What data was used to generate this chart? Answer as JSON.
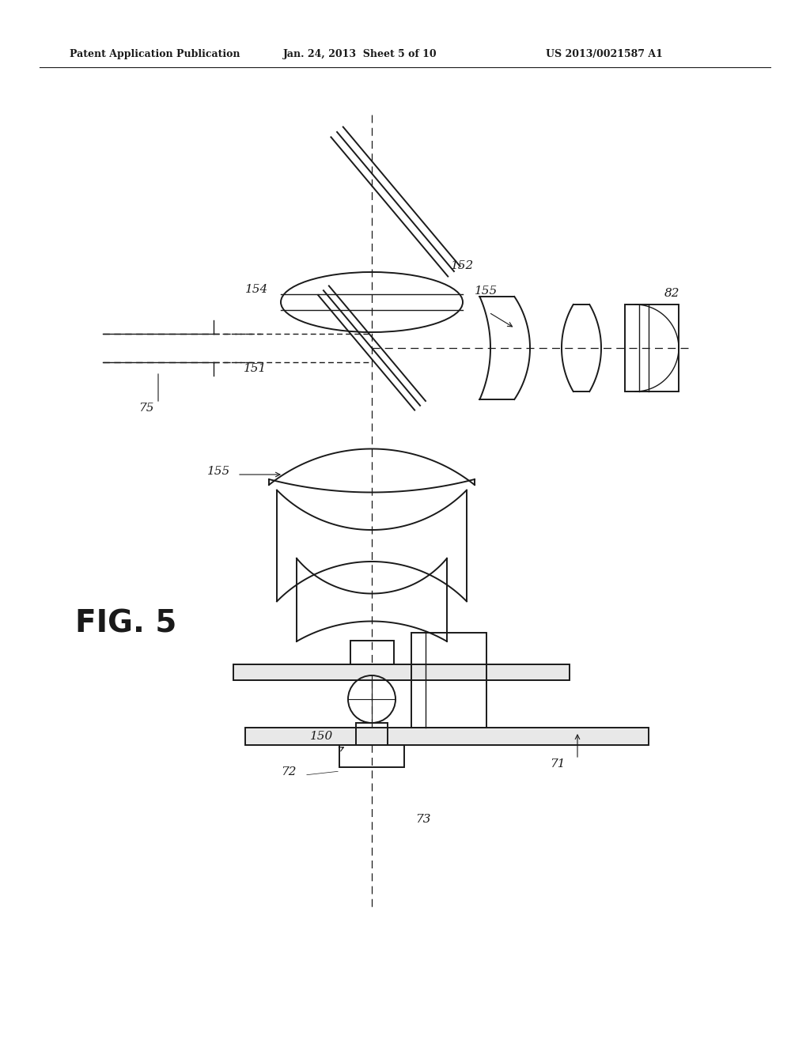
{
  "bg_color": "#ffffff",
  "line_color": "#1a1a1a",
  "header_text1": "Patent Application Publication",
  "header_text2": "Jan. 24, 2013  Sheet 5 of 10",
  "header_text3": "US 2013/0021587 A1",
  "fig_label": "FIG. 5"
}
